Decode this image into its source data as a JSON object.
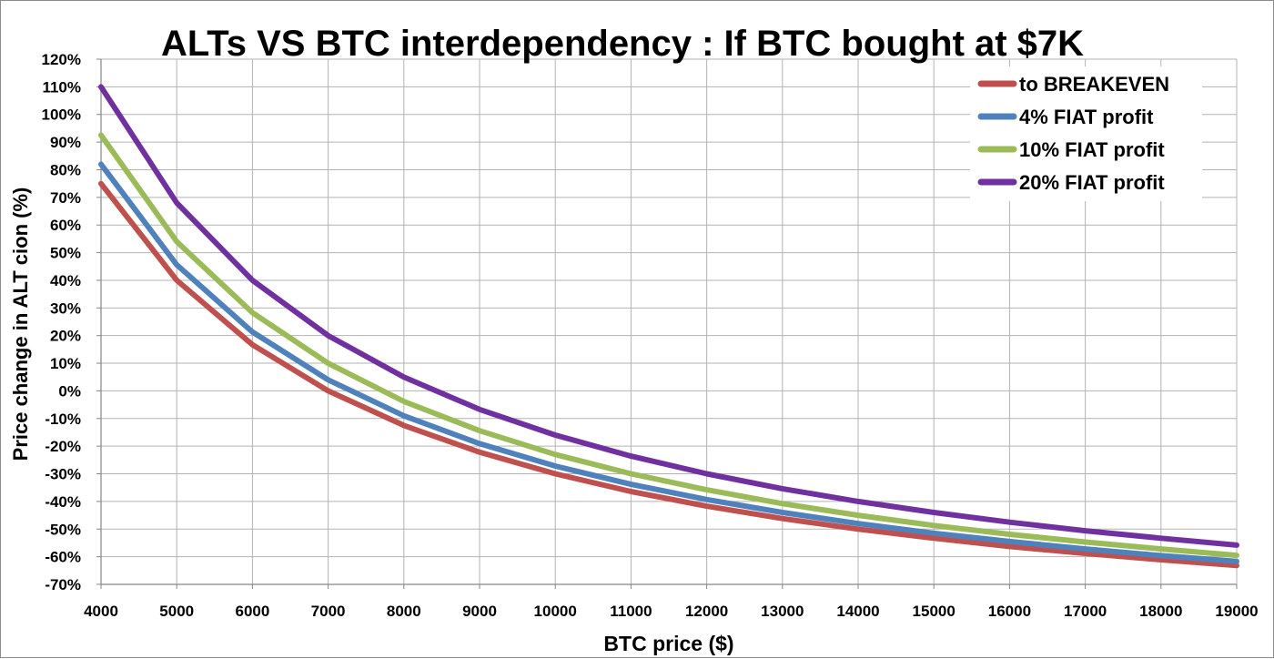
{
  "chart_data": {
    "type": "line",
    "title": "ALTs VS BTC interdependency : If BTC bought at $7K",
    "xlabel": "BTC price ($)",
    "ylabel": "Price change in ALT cion (%)",
    "x": [
      4000,
      5000,
      6000,
      7000,
      8000,
      9000,
      10000,
      11000,
      12000,
      13000,
      14000,
      15000,
      16000,
      17000,
      18000,
      19000
    ],
    "x_ticks": [
      "4000",
      "5000",
      "6000",
      "7000",
      "8000",
      "9000",
      "10000",
      "11000",
      "12000",
      "13000",
      "14000",
      "15000",
      "16000",
      "17000",
      "18000",
      "19000"
    ],
    "xlim": [
      4000,
      19000
    ],
    "ylim": [
      -70,
      120
    ],
    "y_ticks": [
      {
        "value": 120,
        "label": "120%"
      },
      {
        "value": 110,
        "label": "110%"
      },
      {
        "value": 100,
        "label": "100%"
      },
      {
        "value": 90,
        "label": "90%"
      },
      {
        "value": 80,
        "label": "80%"
      },
      {
        "value": 70,
        "label": "70%"
      },
      {
        "value": 60,
        "label": "60%"
      },
      {
        "value": 50,
        "label": "50%"
      },
      {
        "value": 40,
        "label": "40%"
      },
      {
        "value": 30,
        "label": "30%"
      },
      {
        "value": 20,
        "label": "20%"
      },
      {
        "value": 10,
        "label": "10%"
      },
      {
        "value": 0,
        "label": "0%"
      },
      {
        "value": -10,
        "label": "-10%"
      },
      {
        "value": -20,
        "label": "-20%"
      },
      {
        "value": -30,
        "label": "-30%"
      },
      {
        "value": -40,
        "label": "-40%"
      },
      {
        "value": -50,
        "label": "-50%"
      },
      {
        "value": -60,
        "label": "-60%"
      },
      {
        "value": -70,
        "label": "-70%"
      }
    ],
    "grid": true,
    "legend_position": "top-right",
    "series": [
      {
        "name": "to BREAKEVEN",
        "color": "#c0504d",
        "values": [
          75,
          40,
          16.7,
          0,
          -12.5,
          -22.2,
          -30,
          -36.4,
          -41.7,
          -46.2,
          -50,
          -53.3,
          -56.3,
          -58.8,
          -61.1,
          -63.2
        ]
      },
      {
        "name": "4% FIAT profit",
        "color": "#4f81bd",
        "values": [
          82,
          45.6,
          21.3,
          4,
          -9,
          -19.1,
          -27.2,
          -33.8,
          -39.3,
          -44,
          -48,
          -51.5,
          -54.5,
          -57.2,
          -59.6,
          -61.7
        ]
      },
      {
        "name": "10% FIAT profit",
        "color": "#9bbb59",
        "values": [
          92.5,
          54,
          28.3,
          10,
          -3.8,
          -14.4,
          -23,
          -30,
          -35.8,
          -40.8,
          -45,
          -48.7,
          -51.9,
          -54.7,
          -57.2,
          -59.5
        ]
      },
      {
        "name": "20% FIAT profit",
        "color": "#7030a0",
        "values": [
          110,
          68,
          40,
          20,
          5,
          -6.7,
          -16,
          -23.6,
          -30,
          -35.4,
          -40,
          -44,
          -47.5,
          -50.6,
          -53.3,
          -55.8
        ]
      }
    ]
  }
}
